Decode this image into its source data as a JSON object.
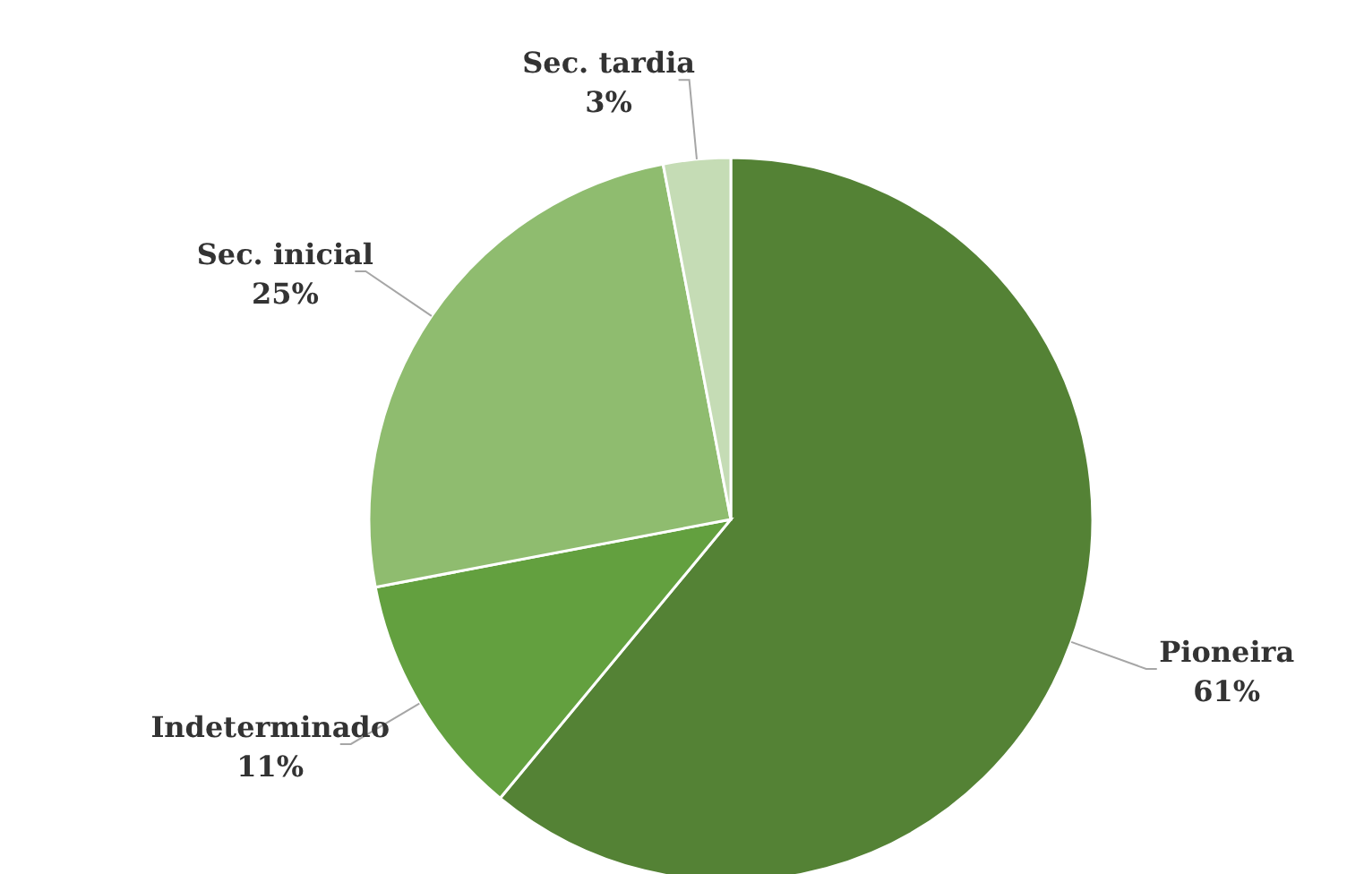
{
  "chart_data": {
    "type": "pie",
    "categories": [
      "Pioneira",
      "Indeterminado",
      "Sec. inicial",
      "Sec. tardia"
    ],
    "values": [
      61,
      11,
      25,
      3
    ],
    "value_labels": [
      "61%",
      "11%",
      "25%",
      "3%"
    ],
    "colors": [
      "#548235",
      "#63a03f",
      "#8fbc6f",
      "#c5dcb5"
    ]
  }
}
